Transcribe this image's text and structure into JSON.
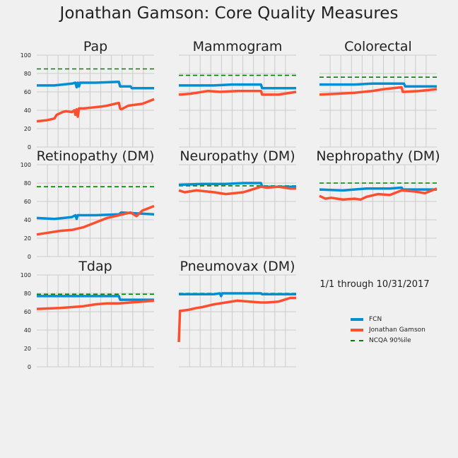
{
  "suptitle": "Jonathan Gamson: Core Quality Measures",
  "period_note": "1/1 through 10/31/2017",
  "colors": {
    "fcn": "#008fd5",
    "provider": "#fc4f30",
    "ncqa": "#008000",
    "grid": "#cbcbcb"
  },
  "legend": {
    "fcn": "FCN",
    "provider": "Jonathan Gamson",
    "ncqa": "NCQA 90%ile"
  },
  "chart_data": [
    {
      "type": "line",
      "title": "Pap",
      "ylim": [
        0,
        100
      ],
      "yticks": [
        0,
        20,
        40,
        60,
        80,
        100
      ],
      "xlim": [
        0,
        100
      ],
      "grid": true,
      "ncqa": 85,
      "series": [
        {
          "name": "FCN",
          "x": [
            0,
            15,
            30,
            33,
            34,
            35,
            36,
            37,
            50,
            70,
            71,
            72,
            80,
            81,
            100
          ],
          "y": [
            67,
            67,
            69,
            70,
            65,
            70,
            66,
            70,
            70,
            71,
            66,
            66,
            66,
            64,
            64
          ]
        },
        {
          "name": "Jonathan Gamson",
          "x": [
            0,
            8,
            15,
            17,
            22,
            25,
            30,
            32,
            33,
            34,
            35,
            36,
            40,
            55,
            60,
            70,
            71,
            72,
            78,
            90,
            100
          ],
          "y": [
            28,
            29,
            31,
            35,
            38,
            39,
            38,
            40,
            35,
            41,
            33,
            42,
            42,
            44,
            45,
            48,
            42,
            41,
            45,
            47,
            52
          ]
        }
      ]
    },
    {
      "type": "line",
      "title": "Mammogram",
      "ylim": [
        0,
        100
      ],
      "yticks": [
        0,
        20,
        40,
        60,
        80,
        100
      ],
      "xlim": [
        0,
        100
      ],
      "grid": true,
      "ncqa": 78,
      "series": [
        {
          "name": "FCN",
          "x": [
            0,
            30,
            45,
            70,
            71,
            72,
            100
          ],
          "y": [
            67,
            67,
            68,
            68,
            64,
            64,
            64
          ]
        },
        {
          "name": "Jonathan Gamson",
          "x": [
            0,
            10,
            25,
            35,
            50,
            70,
            71,
            72,
            85,
            100
          ],
          "y": [
            57,
            58,
            61,
            60,
            61,
            61,
            57,
            57,
            57,
            60
          ]
        }
      ]
    },
    {
      "type": "line",
      "title": "Colorectal",
      "ylim": [
        0,
        100
      ],
      "yticks": [
        0,
        20,
        40,
        60,
        80,
        100
      ],
      "xlim": [
        0,
        100
      ],
      "grid": true,
      "ncqa": 76,
      "series": [
        {
          "name": "FCN",
          "x": [
            0,
            30,
            45,
            72,
            73,
            74,
            100
          ],
          "y": [
            68,
            68,
            69,
            69,
            66,
            66,
            66
          ]
        },
        {
          "name": "Jonathan Gamson",
          "x": [
            0,
            15,
            30,
            45,
            55,
            70,
            71,
            72,
            85,
            100
          ],
          "y": [
            57,
            58,
            59,
            61,
            63,
            65,
            60,
            60,
            61,
            63
          ]
        }
      ]
    },
    {
      "type": "line",
      "title": "Retinopathy (DM)",
      "ylim": [
        0,
        100
      ],
      "yticks": [
        0,
        20,
        40,
        60,
        80,
        100
      ],
      "xlim": [
        0,
        100
      ],
      "grid": true,
      "ncqa": 76,
      "series": [
        {
          "name": "FCN",
          "x": [
            0,
            15,
            30,
            33,
            34,
            35,
            50,
            70,
            72,
            85,
            100
          ],
          "y": [
            42,
            41,
            43,
            45,
            41,
            45,
            45,
            46,
            48,
            47,
            46
          ]
        },
        {
          "name": "Jonathan Gamson",
          "x": [
            0,
            10,
            20,
            30,
            40,
            50,
            60,
            70,
            80,
            85,
            90,
            100
          ],
          "y": [
            24,
            26,
            28,
            29,
            32,
            37,
            42,
            45,
            48,
            44,
            50,
            55
          ]
        }
      ]
    },
    {
      "type": "line",
      "title": "Neuropathy (DM)",
      "ylim": [
        0,
        100
      ],
      "yticks": [
        0,
        20,
        40,
        60,
        80,
        100
      ],
      "xlim": [
        0,
        100
      ],
      "grid": true,
      "ncqa": 77,
      "series": [
        {
          "name": "FCN",
          "x": [
            0,
            20,
            40,
            55,
            70,
            71,
            72,
            100
          ],
          "y": [
            78,
            79,
            79,
            80,
            80,
            76,
            76,
            76
          ]
        },
        {
          "name": "Jonathan Gamson",
          "x": [
            0,
            5,
            15,
            30,
            40,
            55,
            60,
            70,
            75,
            85,
            95,
            100
          ],
          "y": [
            72,
            70,
            72,
            70,
            68,
            70,
            72,
            76,
            75,
            76,
            74,
            74
          ]
        }
      ]
    },
    {
      "type": "line",
      "title": "Nephropathy (DM)",
      "ylim": [
        0,
        100
      ],
      "yticks": [
        0,
        20,
        40,
        60,
        80,
        100
      ],
      "xlim": [
        0,
        100
      ],
      "grid": true,
      "ncqa": 80,
      "series": [
        {
          "name": "FCN",
          "x": [
            0,
            20,
            40,
            60,
            70,
            71,
            72,
            100
          ],
          "y": [
            73,
            72,
            74,
            74,
            75,
            73,
            73,
            73
          ]
        },
        {
          "name": "Jonathan Gamson",
          "x": [
            0,
            5,
            10,
            20,
            30,
            35,
            40,
            50,
            60,
            70,
            80,
            90,
            100
          ],
          "y": [
            66,
            63,
            64,
            62,
            63,
            62,
            65,
            68,
            67,
            72,
            71,
            69,
            74
          ]
        }
      ]
    },
    {
      "type": "line",
      "title": "Tdap",
      "ylim": [
        0,
        100
      ],
      "yticks": [
        0,
        20,
        40,
        60,
        80,
        100
      ],
      "xlim": [
        0,
        100
      ],
      "grid": true,
      "ncqa": 79,
      "series": [
        {
          "name": "FCN",
          "x": [
            0,
            50,
            70,
            71,
            72,
            100
          ],
          "y": [
            77,
            77,
            77,
            73,
            73,
            73
          ]
        },
        {
          "name": "Jonathan Gamson",
          "x": [
            0,
            20,
            40,
            50,
            60,
            70,
            80,
            90,
            100
          ],
          "y": [
            63,
            64,
            66,
            68,
            69,
            69,
            70,
            71,
            72
          ]
        }
      ]
    },
    {
      "type": "line",
      "title": "Pneumovax (DM)",
      "ylim": [
        0,
        100
      ],
      "yticks": [
        0,
        20,
        40,
        60,
        80,
        100
      ],
      "xlim": [
        0,
        100
      ],
      "grid": true,
      "ncqa": 80,
      "series": [
        {
          "name": "FCN",
          "x": [
            0,
            1,
            2,
            30,
            35,
            36,
            37,
            50,
            70,
            71,
            72,
            100
          ],
          "y": [
            79,
            79,
            79,
            79,
            80,
            77,
            80,
            80,
            80,
            79,
            79,
            79
          ]
        },
        {
          "name": "Jonathan Gamson",
          "x": [
            0,
            1,
            2,
            8,
            15,
            20,
            30,
            40,
            50,
            60,
            70,
            75,
            85,
            95,
            100
          ],
          "y": [
            27,
            61,
            61,
            62,
            64,
            65,
            68,
            70,
            72,
            71,
            70,
            70,
            71,
            75,
            75
          ]
        }
      ]
    }
  ]
}
